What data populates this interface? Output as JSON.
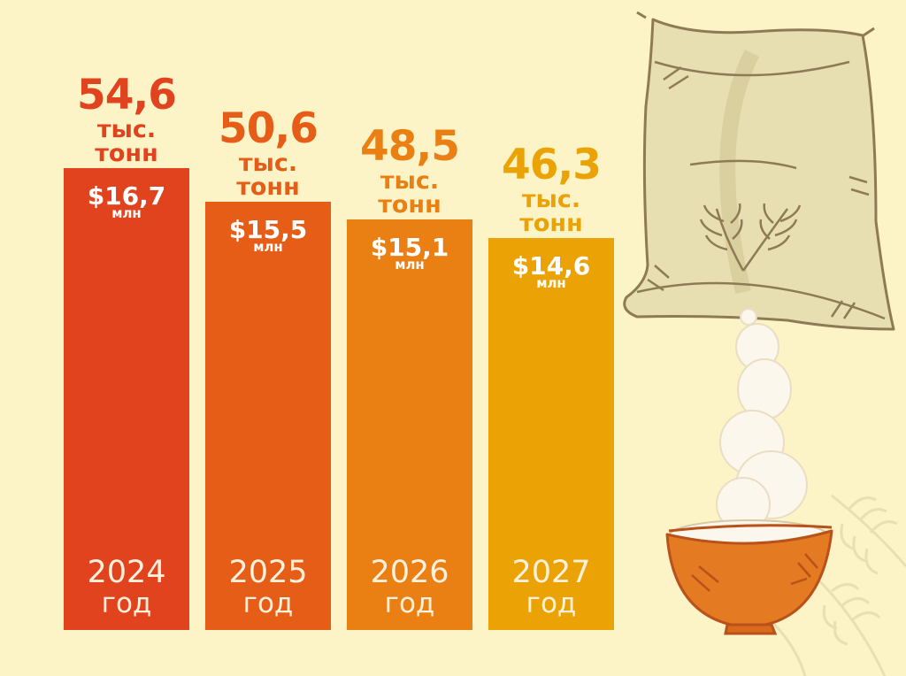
{
  "chart_data": {
    "type": "bar",
    "categories": [
      "2024",
      "2025",
      "2026",
      "2027"
    ],
    "category_suffix": "год",
    "series": [
      {
        "values": [
          54.6,
          50.6,
          48.5,
          46.3
        ]
      },
      {
        "values": [
          16.7,
          15.5,
          15.1,
          14.6
        ]
      }
    ],
    "value_labels": [
      "54,6",
      "50,6",
      "48,5",
      "46,3"
    ],
    "value_unit": "тыс. тонн",
    "money_labels": [
      "$16,7",
      "$15,5",
      "$15,1",
      "$14,6"
    ],
    "money_unit": "млн",
    "colors": [
      "#E2431F",
      "#E55D17",
      "#EA7F14",
      "#EAA204"
    ],
    "value_label_colors": [
      "#E2431F",
      "#E55D17",
      "#EA7F14",
      "#EAA204"
    ]
  },
  "illustration": {
    "icons": [
      "grain-sack-icon",
      "wheat-icon",
      "rice-bowl-icon"
    ],
    "background_color": "#FCF4C6"
  }
}
